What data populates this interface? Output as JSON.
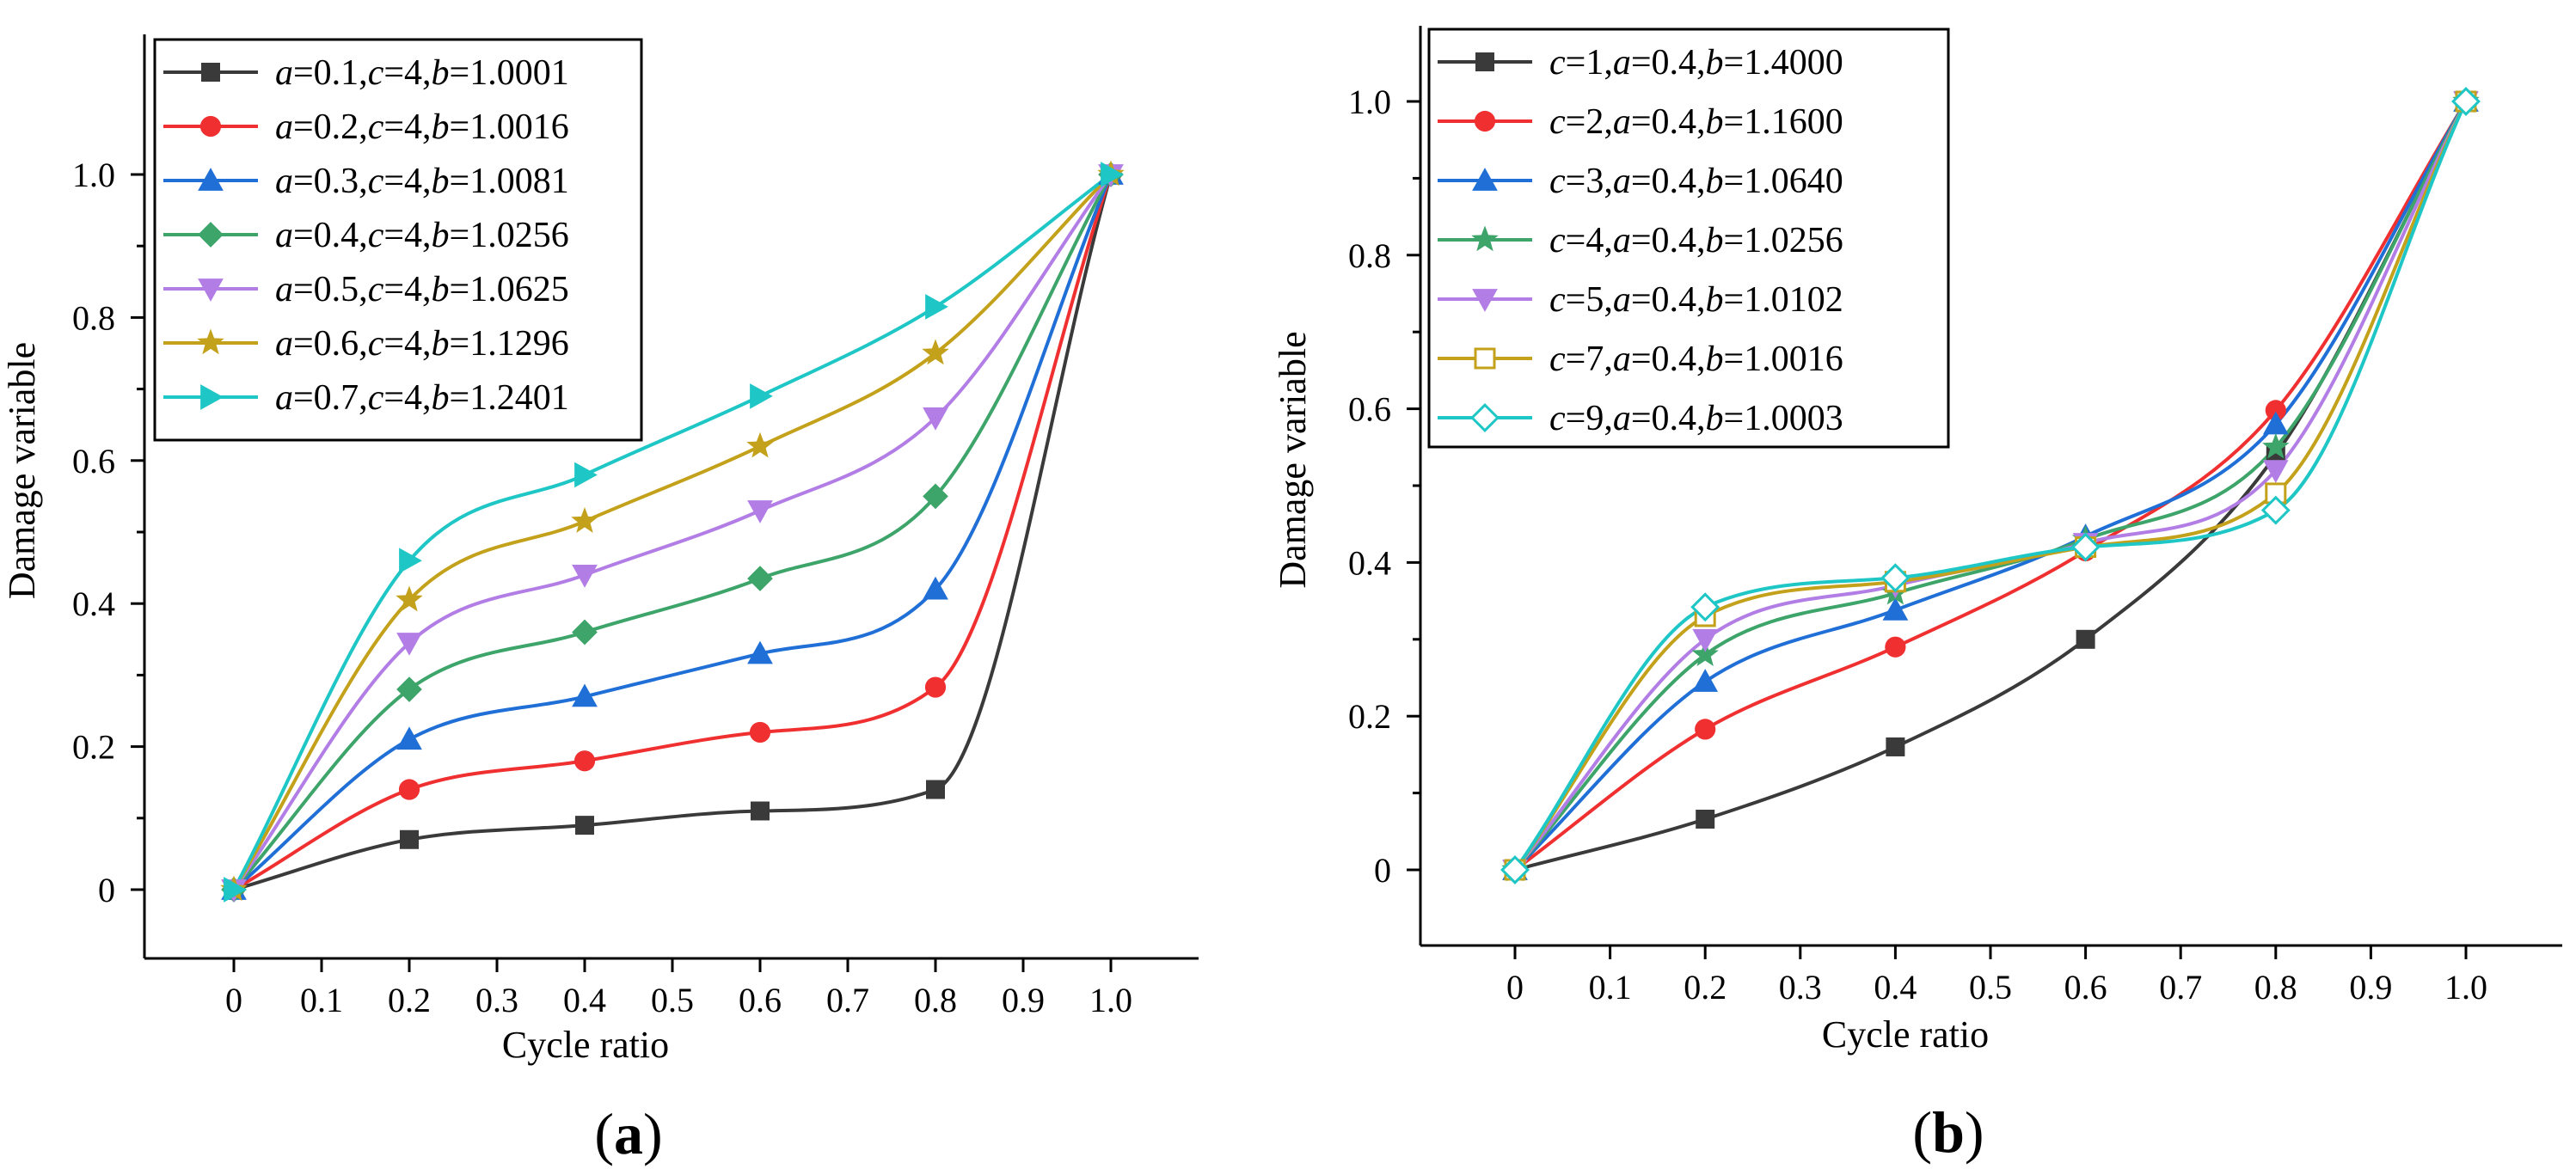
{
  "chart_data": [
    {
      "type": "line",
      "panel_label": "(a)",
      "xlabel": "Cycle ratio",
      "ylabel": "Damage variable",
      "xlim": [
        -0.1,
        1.1
      ],
      "ylim": [
        -0.09,
        1.1
      ],
      "x_ticks": [
        0,
        0.1,
        0.2,
        0.3,
        0.4,
        0.5,
        0.6,
        0.7,
        0.8,
        0.9,
        1.0
      ],
      "x_tick_labels": [
        "0",
        "0.1",
        "0.2",
        "0.3",
        "0.4",
        "0.5",
        "0.6",
        "0.7",
        "0.8",
        "0.9",
        "1.0"
      ],
      "y_ticks": [
        0,
        0.2,
        0.4,
        0.6,
        0.8,
        1.0
      ],
      "y_tick_labels": [
        "0",
        "0.2",
        "0.4",
        "0.6",
        "0.8",
        "1.0"
      ],
      "grid": false,
      "legend_position": "top-left",
      "series": [
        {
          "legend": {
            "p": "a",
            "pv": "=0.1,",
            "q": "c",
            "qv": "=4,",
            "r": "b",
            "rv": "=1.0001"
          },
          "color": "#3a3a3a",
          "marker": "square",
          "a": 0.1,
          "c": 4,
          "b": 1.0001,
          "x": [
            0,
            0.2,
            0.4,
            0.6,
            0.8,
            1.0
          ],
          "y": [
            0,
            0.07,
            0.09,
            0.11,
            0.14,
            1.0
          ]
        },
        {
          "legend": {
            "p": "a",
            "pv": "=0.2,",
            "q": "c",
            "qv": "=4,",
            "r": "b",
            "rv": "=1.0016"
          },
          "color": "#f03030",
          "marker": "circle",
          "a": 0.2,
          "c": 4,
          "b": 1.0016,
          "x": [
            0,
            0.2,
            0.4,
            0.6,
            0.8,
            1.0
          ],
          "y": [
            0,
            0.14,
            0.18,
            0.22,
            0.283,
            1.0
          ]
        },
        {
          "legend": {
            "p": "a",
            "pv": "=0.3,",
            "q": "c",
            "qv": "=4,",
            "r": "b",
            "rv": "=1.0081"
          },
          "color": "#1f6fd6",
          "marker": "triangle-up",
          "a": 0.3,
          "c": 4,
          "b": 1.0081,
          "x": [
            0,
            0.2,
            0.4,
            0.6,
            0.8,
            1.0
          ],
          "y": [
            0,
            0.21,
            0.27,
            0.33,
            0.42,
            1.0
          ]
        },
        {
          "legend": {
            "p": "a",
            "pv": "=0.4,",
            "q": "c",
            "qv": "=4,",
            "r": "b",
            "rv": "=1.0256"
          },
          "color": "#3da46a",
          "marker": "diamond",
          "a": 0.4,
          "c": 4,
          "b": 1.0256,
          "x": [
            0,
            0.2,
            0.4,
            0.6,
            0.8,
            1.0
          ],
          "y": [
            0,
            0.28,
            0.36,
            0.435,
            0.55,
            1.0
          ]
        },
        {
          "legend": {
            "p": "a",
            "pv": "=0.5,",
            "q": "c",
            "qv": "=4,",
            "r": "b",
            "rv": "=1.0625"
          },
          "color": "#b27ee6",
          "marker": "triangle-down",
          "a": 0.5,
          "c": 4,
          "b": 1.0625,
          "x": [
            0,
            0.2,
            0.4,
            0.6,
            0.8,
            1.0
          ],
          "y": [
            0,
            0.345,
            0.44,
            0.53,
            0.66,
            1.0
          ]
        },
        {
          "legend": {
            "p": "a",
            "pv": "=0.6,",
            "q": "c",
            "qv": "=4,",
            "r": "b",
            "rv": "=1.1296"
          },
          "color": "#c4a11a",
          "marker": "star",
          "a": 0.6,
          "c": 4,
          "b": 1.1296,
          "x": [
            0,
            0.2,
            0.4,
            0.6,
            0.8,
            1.0
          ],
          "y": [
            0,
            0.405,
            0.515,
            0.62,
            0.75,
            1.0
          ]
        },
        {
          "legend": {
            "p": "a",
            "pv": "=0.7,",
            "q": "c",
            "qv": "=4,",
            "r": "b",
            "rv": "=1.2401"
          },
          "color": "#1ec6c6",
          "marker": "triangle-right",
          "a": 0.7,
          "c": 4,
          "b": 1.2401,
          "x": [
            0,
            0.2,
            0.4,
            0.6,
            0.8,
            1.0
          ],
          "y": [
            0,
            0.46,
            0.58,
            0.69,
            0.815,
            1.0
          ]
        }
      ]
    },
    {
      "type": "line",
      "panel_label": "(b)",
      "xlabel": "Cycle ratio",
      "ylabel": "Damage variable",
      "xlim": [
        -0.1,
        1.1
      ],
      "ylim": [
        -0.1,
        1.1
      ],
      "x_ticks": [
        0,
        0.1,
        0.2,
        0.3,
        0.4,
        0.5,
        0.6,
        0.7,
        0.8,
        0.9,
        1.0
      ],
      "x_tick_labels": [
        "0",
        "0.1",
        "0.2",
        "0.3",
        "0.4",
        "0.5",
        "0.6",
        "0.7",
        "0.8",
        "0.9",
        "1.0"
      ],
      "y_ticks": [
        0,
        0.2,
        0.4,
        0.6,
        0.8,
        1.0
      ],
      "y_tick_labels": [
        "0",
        "0.2",
        "0.4",
        "0.6",
        "0.8",
        "1.0"
      ],
      "grid": false,
      "legend_position": "top-left",
      "series": [
        {
          "legend": {
            "p": "c",
            "pv": "=1,",
            "q": "a",
            "qv": "=0.4,",
            "r": "b",
            "rv": "=1.4000"
          },
          "color": "#3a3a3a",
          "marker": "square",
          "c": 1,
          "a": 0.4,
          "b": 1.4,
          "x": [
            0,
            0.2,
            0.4,
            0.6,
            0.8,
            1.0
          ],
          "y": [
            0,
            0.066,
            0.16,
            0.3,
            0.54,
            1.0
          ]
        },
        {
          "legend": {
            "p": "c",
            "pv": "=2,",
            "q": "a",
            "qv": "=0.4,",
            "r": "b",
            "rv": "=1.1600"
          },
          "color": "#f03030",
          "marker": "circle",
          "c": 2,
          "a": 0.4,
          "b": 1.16,
          "x": [
            0,
            0.2,
            0.4,
            0.6,
            0.8,
            1.0
          ],
          "y": [
            0,
            0.183,
            0.29,
            0.415,
            0.598,
            1.0
          ]
        },
        {
          "legend": {
            "p": "c",
            "pv": "=3,",
            "q": "a",
            "qv": "=0.4,",
            "r": "b",
            "rv": "=1.0640"
          },
          "color": "#1f6fd6",
          "marker": "triangle-up",
          "c": 3,
          "a": 0.4,
          "b": 1.064,
          "x": [
            0,
            0.2,
            0.4,
            0.6,
            0.8,
            1.0
          ],
          "y": [
            0,
            0.245,
            0.338,
            0.434,
            0.58,
            1.0
          ]
        },
        {
          "legend": {
            "p": "c",
            "pv": "=4,",
            "q": "a",
            "qv": "=0.4,",
            "r": "b",
            "rv": "=1.0256"
          },
          "color": "#3da46a",
          "marker": "star",
          "c": 4,
          "a": 0.4,
          "b": 1.0256,
          "x": [
            0,
            0.2,
            0.4,
            0.6,
            0.8,
            1.0
          ],
          "y": [
            0,
            0.28,
            0.36,
            0.43,
            0.55,
            1.0
          ]
        },
        {
          "legend": {
            "p": "c",
            "pv": "=5,",
            "q": "a",
            "qv": "=0.4,",
            "r": "b",
            "rv": "=1.0102"
          },
          "color": "#b27ee6",
          "marker": "triangle-down",
          "c": 5,
          "a": 0.4,
          "b": 1.0102,
          "x": [
            0,
            0.2,
            0.4,
            0.6,
            0.8,
            1.0
          ],
          "y": [
            0,
            0.3,
            0.37,
            0.425,
            0.52,
            1.0
          ]
        },
        {
          "legend": {
            "p": "c",
            "pv": "=7,",
            "q": "a",
            "qv": "=0.4,",
            "r": "b",
            "rv": "=1.0016"
          },
          "color": "#c4a11a",
          "marker": "square-open",
          "c": 7,
          "a": 0.4,
          "b": 1.0016,
          "x": [
            0,
            0.2,
            0.4,
            0.6,
            0.8,
            1.0
          ],
          "y": [
            0,
            0.33,
            0.375,
            0.42,
            0.49,
            1.0
          ]
        },
        {
          "legend": {
            "p": "c",
            "pv": "=9,",
            "q": "a",
            "qv": "=0.4,",
            "r": "b",
            "rv": "=1.0003"
          },
          "color": "#1ec6c6",
          "marker": "diamond-open",
          "c": 9,
          "a": 0.4,
          "b": 1.0003,
          "x": [
            0,
            0.2,
            0.4,
            0.6,
            0.8,
            1.0
          ],
          "y": [
            0,
            0.342,
            0.38,
            0.42,
            0.468,
            1.0
          ]
        }
      ]
    }
  ]
}
